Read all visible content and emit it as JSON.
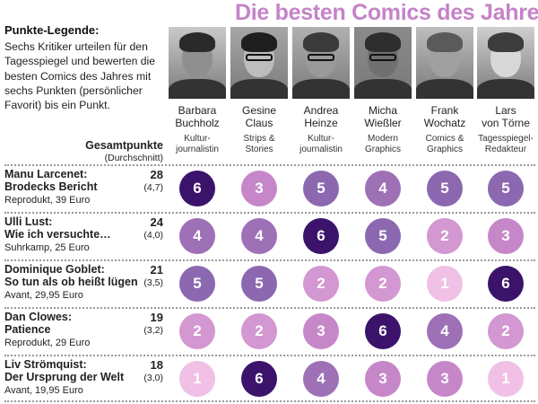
{
  "title": "Die besten Comics des Jahres",
  "legend": {
    "title": "Punkte-Legende:",
    "text": "Sechs Kritiker urteilen für den Tagesspiegel und bewerten die besten Comics des Jahres mit sechs Punkten (persönlicher Favorit) bis ein Punkt."
  },
  "totals_header": {
    "title": "Gesamtpunkte",
    "sub": "(Durchschnitt)"
  },
  "critics": [
    {
      "first": "Barbara",
      "last": "Buchholz",
      "role": "Kultur-journalistin"
    },
    {
      "first": "Gesine",
      "last": "Claus",
      "role": "Strips & Stories"
    },
    {
      "first": "Andrea",
      "last": "Heinze",
      "role": "Kultur-journalistin"
    },
    {
      "first": "Micha",
      "last": "Wießler",
      "role": "Modern Graphics"
    },
    {
      "first": "Frank",
      "last": "Wochatz",
      "role": "Comics & Graphics"
    },
    {
      "first": "Lars",
      "last": "von Törne",
      "role": "Tagesspiegel-Redakteur"
    }
  ],
  "score_colors": {
    "1": "#f0c0e6",
    "2": "#d397d2",
    "3": "#c687c9",
    "4": "#9e70b6",
    "5": "#8c68b0",
    "6": "#3b136b"
  },
  "comics": [
    {
      "author": "Manu Larcenet:",
      "book": "Brodecks Bericht",
      "publisher": "Reprodukt, 39 Euro",
      "total": "28",
      "avg": "(4,7)",
      "scores": [
        6,
        3,
        5,
        4,
        5,
        5
      ]
    },
    {
      "author": "Ulli Lust:",
      "book": "Wie ich versuchte…",
      "publisher": "Suhrkamp, 25 Euro",
      "total": "24",
      "avg": "(4,0)",
      "scores": [
        4,
        4,
        6,
        5,
        2,
        3
      ]
    },
    {
      "author": "Dominique Goblet:",
      "book": "So tun als ob heißt lügen",
      "publisher": "Avant, 29,95 Euro",
      "total": "21",
      "avg": "(3,5)",
      "scores": [
        5,
        5,
        2,
        2,
        1,
        6
      ]
    },
    {
      "author": "Dan Clowes:",
      "book": "Patience",
      "publisher": "Reprodukt, 29 Euro",
      "total": "19",
      "avg": "(3,2)",
      "scores": [
        2,
        2,
        3,
        6,
        4,
        2
      ]
    },
    {
      "author": "Liv Strömquist:",
      "book": "Der Ursprung der Welt",
      "publisher": "Avant, 19,95 Euro",
      "total": "18",
      "avg": "(3,0)",
      "scores": [
        1,
        6,
        4,
        3,
        3,
        1
      ]
    }
  ]
}
